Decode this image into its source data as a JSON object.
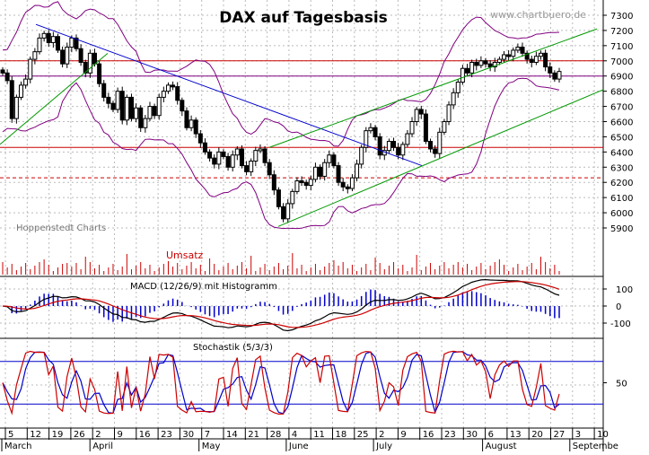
{
  "chart_data": {
    "type": "line",
    "title": "DAX auf Tagesbasis",
    "watermark": "www.chartbuero.de",
    "source_label": "Hoppenstedt Charts",
    "colors": {
      "candles": "#000000",
      "bollinger": "#800080",
      "trend_blue": "#0000cc",
      "trend_green": "#009900",
      "horizontal_red": "#cc0000",
      "volume": "#cc0000",
      "macd_line": "#000000",
      "signal_line": "#cc0000",
      "histogram": "#0000cc",
      "stoch_k": "#cc0000",
      "stoch_d": "#0000cc"
    },
    "price_panel": {
      "y_ticks": [
        "7300",
        "7200",
        "7100",
        "7000",
        "6900",
        "6800",
        "6700",
        "6600",
        "6500",
        "6400",
        "6300",
        "6200",
        "6100",
        "6000",
        "5900"
      ],
      "ylim": [
        5850,
        7350
      ],
      "horizontal_lines": [
        {
          "value": 7000,
          "style": "solid"
        },
        {
          "value": 6430,
          "style": "solid"
        },
        {
          "value": 6230,
          "style": "dashed"
        },
        {
          "value": 6900,
          "style": "solid"
        }
      ],
      "candles": [
        6920,
        6870,
        6620,
        6760,
        6840,
        6880,
        7010,
        7060,
        7150,
        7180,
        7120,
        7160,
        7070,
        6980,
        7090,
        7150,
        7080,
        6990,
        6920,
        7050,
        6980,
        6850,
        6760,
        6720,
        6680,
        6800,
        6610,
        6760,
        6620,
        6690,
        6560,
        6620,
        6700,
        6640,
        6760,
        6800,
        6840,
        6830,
        6740,
        6670,
        6560,
        6610,
        6520,
        6460,
        6400,
        6360,
        6320,
        6400,
        6370,
        6300,
        6380,
        6420,
        6310,
        6270,
        6340,
        6410,
        6420,
        6330,
        6250,
        6150,
        6040,
        5960,
        6060,
        6140,
        6210,
        6200,
        6180,
        6220,
        6300,
        6240,
        6330,
        6380,
        6310,
        6200,
        6170,
        6160,
        6230,
        6320,
        6430,
        6540,
        6560,
        6500,
        6380,
        6410,
        6470,
        6430,
        6380,
        6450,
        6520,
        6600,
        6680,
        6650,
        6470,
        6420,
        6390,
        6530,
        6600,
        6710,
        6790,
        6860,
        6950,
        6920,
        6990,
        6970,
        7000,
        6980,
        6960,
        6990,
        7010,
        7040,
        7030,
        7070,
        7090,
        7050,
        7010,
        6990,
        7030,
        7050,
        6960,
        6920,
        6880,
        6930
      ]
    },
    "upper_panel_label": "Umsatz",
    "macd_panel": {
      "title": "MACD (12/26/9) mit Histogramm",
      "y_ticks": [
        "100",
        "0",
        "-100"
      ],
      "ylim": [
        -150,
        150
      ]
    },
    "stochastic_panel": {
      "title": "Stochastik (5/3/3)",
      "y_ticks": [
        "50"
      ],
      "ylim": [
        0,
        100
      ],
      "reference_lines": [
        80,
        20
      ]
    },
    "x_ticks": [
      "5",
      "12",
      "19",
      "26",
      "2",
      "9",
      "16",
      "23",
      "30",
      "7",
      "14",
      "21",
      "28",
      "4",
      "11",
      "18",
      "25",
      "2",
      "9",
      "16",
      "23",
      "30",
      "6",
      "13",
      "20",
      "27",
      "3",
      "10"
    ],
    "months": [
      "March",
      "April",
      "May",
      "June",
      "July",
      "August",
      "Septembe"
    ]
  }
}
